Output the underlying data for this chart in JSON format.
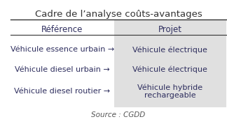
{
  "title": "Cadre de l’analyse coûts-avantages",
  "col_header_left": "Référence",
  "col_header_right": "Projet",
  "rows": [
    {
      "left": "Véhicule essence urbain →",
      "right": "Véhicule électrique"
    },
    {
      "left": "Véhicule diesel urbain →",
      "right": "Véhicule électrique"
    },
    {
      "left": "Véhicule diesel routier →",
      "right": "Véhicule hybride\nrechargeable"
    }
  ],
  "source": "Source : CGDD",
  "bg_color": "#ffffff",
  "right_col_bg": "#e0e0e0",
  "header_line_color": "#333333",
  "text_color": "#2e2e5e",
  "title_color": "#333333",
  "source_color": "#555555",
  "col_split": 0.48,
  "title_fontsize": 9.5,
  "header_fontsize": 8.5,
  "cell_fontsize": 8,
  "source_fontsize": 7.5
}
